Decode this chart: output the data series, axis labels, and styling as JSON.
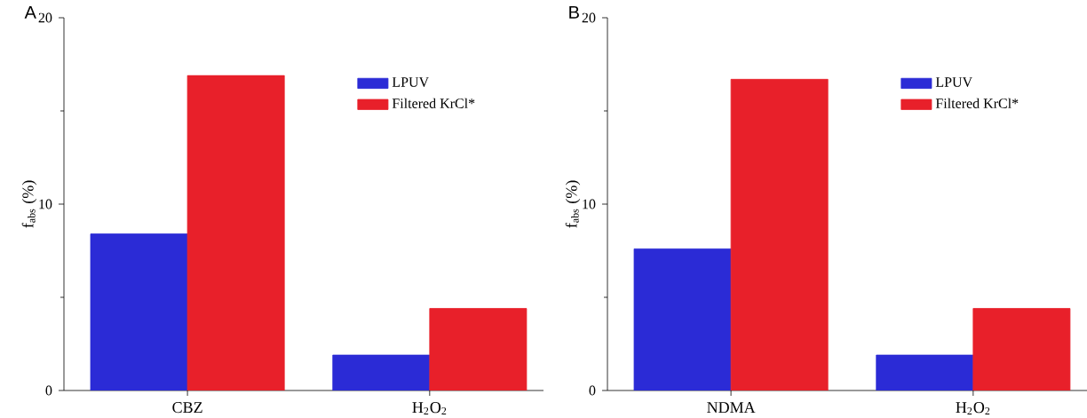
{
  "chart_data": [
    {
      "type": "bar",
      "title": "A",
      "ylabel": "f$_{abs}$ (%)",
      "categories": [
        "CBZ",
        "H$_{2}$O$_{2}$"
      ],
      "series": [
        {
          "name": "LPUV",
          "color": "#2b2bd6",
          "values": [
            8.4,
            1.9
          ]
        },
        {
          "name": "Filtered KrCl*",
          "color": "#e8202a",
          "values": [
            16.9,
            4.4
          ]
        }
      ],
      "ylim": [
        0,
        20
      ],
      "yticks": [
        0,
        10,
        20
      ],
      "legend": "top right"
    },
    {
      "type": "bar",
      "title": "B",
      "ylabel": "f$_{abs}$ (%)",
      "categories": [
        "NDMA",
        "H$_{2}$O$_{2}$"
      ],
      "series": [
        {
          "name": "LPUV",
          "color": "#2b2bd6",
          "values": [
            7.6,
            1.9
          ]
        },
        {
          "name": "Filtered KrCl*",
          "color": "#e8202a",
          "values": [
            16.7,
            4.4
          ]
        }
      ],
      "ylim": [
        0,
        20
      ],
      "yticks": [
        0,
        10,
        20
      ],
      "legend": "top right"
    }
  ]
}
